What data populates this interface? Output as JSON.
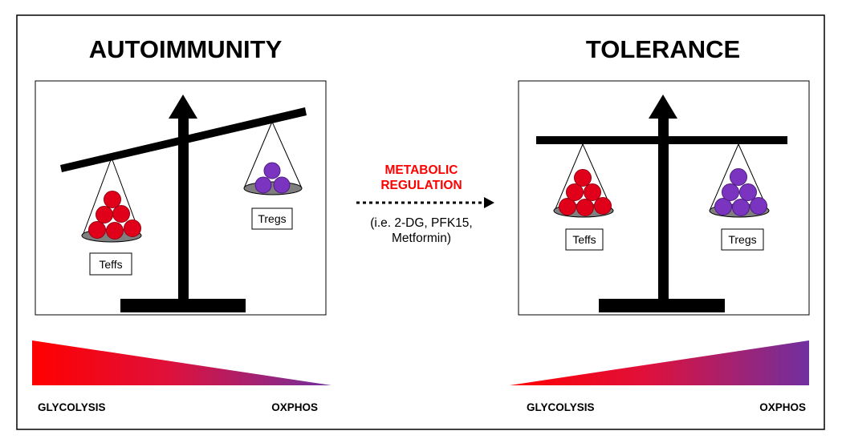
{
  "headings": {
    "left": "AUTOIMMUNITY",
    "right": "TOLERANCE"
  },
  "left_panel": {
    "pan_left_label": "Teffs",
    "pan_right_label": "Tregs",
    "pan_left_cells": 6,
    "pan_right_cells": 3
  },
  "right_panel": {
    "pan_left_label": "Teffs",
    "pan_right_label": "Tregs",
    "pan_left_cells": 6,
    "pan_right_cells": 6
  },
  "middle": {
    "title_line1": "METABOLIC",
    "title_line2": "REGULATION",
    "note_line1": "(i.e. 2-DG, PFK15,",
    "note_line2": "Metformin)"
  },
  "gradients": {
    "left": {
      "start_label": "GLYCOLYSIS",
      "end_label": "OXPHOS"
    },
    "right": {
      "start_label": "GLYCOLYSIS",
      "end_label": "OXPHOS"
    }
  },
  "colors": {
    "teff": "#e0001a",
    "treg": "#7a34c0",
    "glycolysis": "#ff0000",
    "oxphos": "#7030a0",
    "highlight_text": "#ff0000"
  }
}
